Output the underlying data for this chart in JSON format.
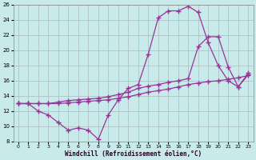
{
  "xlabel": "Windchill (Refroidissement éolien,°C)",
  "background_color": "#c8eaea",
  "grid_color": "#aabbbb",
  "line_color": "#993399",
  "xlim_min": -0.5,
  "xlim_max": 23.5,
  "ylim_min": 8,
  "ylim_max": 26,
  "yticks": [
    8,
    10,
    12,
    14,
    16,
    18,
    20,
    22,
    24,
    26
  ],
  "xticks": [
    0,
    1,
    2,
    3,
    4,
    5,
    6,
    7,
    8,
    9,
    10,
    11,
    12,
    13,
    14,
    15,
    16,
    17,
    18,
    19,
    20,
    21,
    22,
    23
  ],
  "line1_x": [
    0,
    1,
    2,
    3,
    4,
    5,
    6,
    7,
    8,
    9,
    10,
    11,
    12,
    13,
    14,
    15,
    16,
    17,
    18,
    19,
    20,
    21,
    22,
    23
  ],
  "line1_y": [
    13.0,
    13.0,
    12.0,
    11.5,
    10.5,
    9.5,
    9.8,
    9.5,
    8.3,
    11.5,
    13.5,
    15.0,
    15.5,
    19.5,
    24.3,
    25.2,
    25.2,
    25.8,
    25.0,
    21.0,
    18.0,
    16.0,
    15.2,
    16.8
  ],
  "line2_x": [
    0,
    1,
    2,
    3,
    4,
    5,
    6,
    7,
    8,
    9,
    10,
    11,
    12,
    13,
    14,
    15,
    16,
    17,
    18,
    19,
    20,
    21,
    22,
    23
  ],
  "line2_y": [
    13.0,
    13.0,
    13.0,
    13.0,
    13.2,
    13.4,
    13.5,
    13.6,
    13.7,
    13.9,
    14.2,
    14.5,
    15.0,
    15.3,
    15.5,
    15.8,
    16.0,
    16.3,
    20.5,
    21.8,
    21.8,
    17.8,
    15.2,
    17.0
  ],
  "line3_x": [
    0,
    1,
    2,
    3,
    4,
    5,
    6,
    7,
    8,
    9,
    10,
    11,
    12,
    13,
    14,
    15,
    16,
    17,
    18,
    19,
    20,
    21,
    22,
    23
  ],
  "line3_y": [
    13.0,
    13.0,
    13.0,
    13.0,
    13.0,
    13.1,
    13.2,
    13.3,
    13.4,
    13.5,
    13.7,
    13.9,
    14.2,
    14.5,
    14.7,
    14.9,
    15.2,
    15.5,
    15.7,
    15.9,
    16.0,
    16.2,
    16.4,
    16.7
  ]
}
